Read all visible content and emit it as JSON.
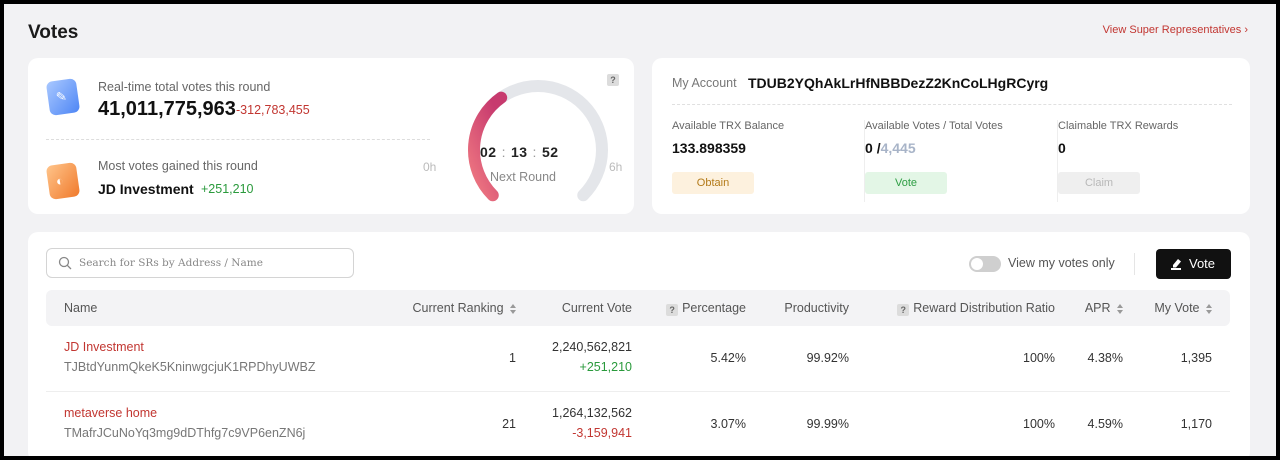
{
  "page": {
    "title": "Votes",
    "super_link": "View Super Representatives"
  },
  "round": {
    "total_label": "Real-time total votes this round",
    "total_votes": "41,011,775,963",
    "total_delta": "-312,783,455",
    "most_label": "Most votes gained this round",
    "most_name": "JD Investment",
    "most_delta": "+251,210",
    "timer_h": "02",
    "timer_m": "13",
    "timer_s": "52",
    "next_round_label": "Next Round",
    "gauge_start": "0h",
    "gauge_end": "6h",
    "progress_fraction": 0.37
  },
  "account": {
    "label": "My Account",
    "address": "TDUB2YQhAkLrHfNBBDezZ2KnCoLHgRCyrg",
    "balance_label": "Available TRX Balance",
    "balance": "133.898359",
    "obtain_label": "Obtain",
    "votes_label": "Available Votes / Total Votes",
    "votes_available": "0",
    "votes_sep": "/",
    "votes_total": "4,445",
    "vote_label": "Vote",
    "rewards_label": "Claimable TRX Rewards",
    "rewards": "0",
    "claim_label": "Claim"
  },
  "toolbar": {
    "search_placeholder": "Search for SRs by Address / Name",
    "toggle_label": "View my votes only",
    "vote_button": "Vote"
  },
  "table": {
    "headers": {
      "name": "Name",
      "ranking": "Current Ranking",
      "current_vote": "Current Vote",
      "percentage": "Percentage",
      "productivity": "Productivity",
      "reward_ratio": "Reward Distribution Ratio",
      "apr": "APR",
      "my_vote": "My Vote"
    },
    "rows": [
      {
        "name": "JD Investment",
        "address": "TJBtdYunmQkeK5KninwgcjuK1RPDhyUWBZ",
        "ranking": "1",
        "current_vote": "2,240,562,821",
        "vote_delta": "+251,210",
        "percentage": "5.42%",
        "productivity": "99.92%",
        "reward_ratio": "100%",
        "apr": "4.38%",
        "my_vote": "1,395"
      },
      {
        "name": "metaverse home",
        "address": "TMafrJCuNoYq3mg9dDThfg7c9VP6enZN6j",
        "ranking": "21",
        "current_vote": "1,264,132,562",
        "vote_delta": "-3,159,941",
        "percentage": "3.07%",
        "productivity": "99.99%",
        "reward_ratio": "100%",
        "apr": "4.59%",
        "my_vote": "1,170"
      }
    ]
  },
  "colors": {
    "accent_red": "#c23631",
    "positive_green": "#2a9a3c",
    "gauge_track": "#e4e6ea",
    "gauge_start": "#f07a82",
    "gauge_end": "#c73a6e"
  }
}
